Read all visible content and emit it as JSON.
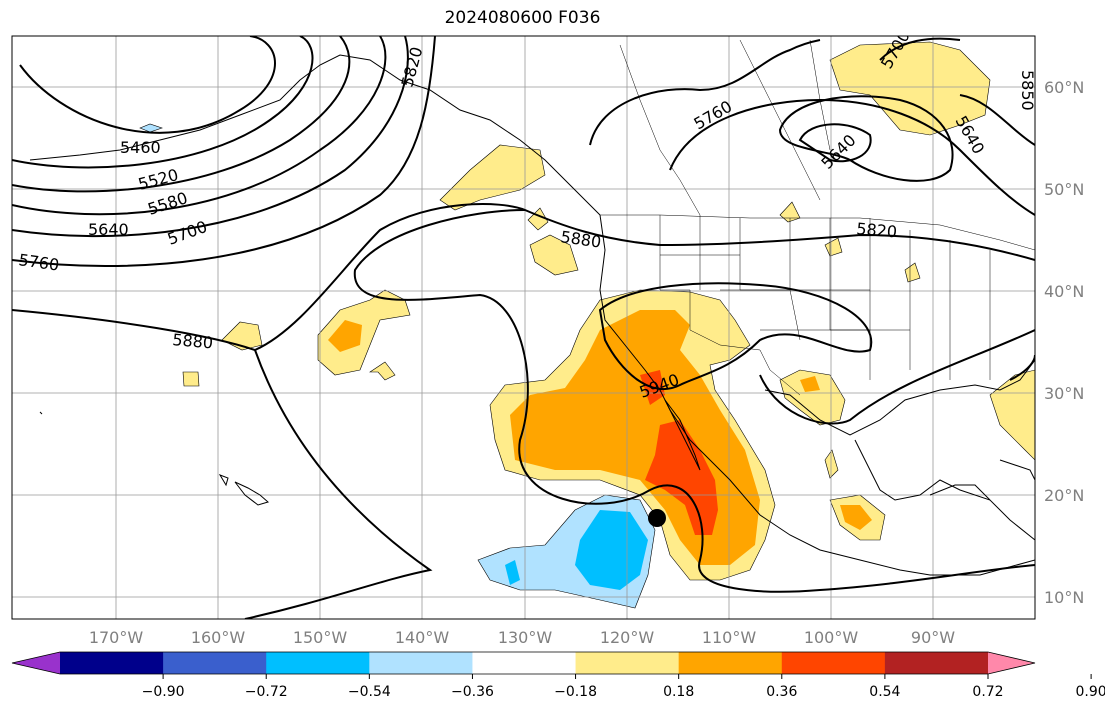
{
  "title": "2024080600 F036",
  "lat_labels": [
    "60°N",
    "50°N",
    "40°N",
    "30°N",
    "20°N",
    "10°N"
  ],
  "lon_labels": [
    "170°W",
    "160°W",
    "150°W",
    "140°W",
    "130°W",
    "120°W",
    "110°W",
    "100°W",
    "90°W"
  ],
  "contour_labels": [
    "5460",
    "5520",
    "5580",
    "5640",
    "5700",
    "5760",
    "5880",
    "5820",
    "5880",
    "5940",
    "5760",
    "5640",
    "5640",
    "5700",
    "5820",
    "5850"
  ],
  "colorbar": {
    "ticks": [
      "−0.90",
      "−0.72",
      "−0.54",
      "−0.36",
      "−0.18",
      "0.18",
      "0.36",
      "0.54",
      "0.72",
      "0.90"
    ],
    "colors": [
      "#9932cc",
      "#00008b",
      "#3a5fcd",
      "#00bfff",
      "#b0e2ff",
      "#ffffff",
      "#ffec8b",
      "#ffa500",
      "#ff4500",
      "#b22222",
      "#ff88aa"
    ]
  },
  "marker": {
    "name": "storm-center",
    "color": "#000000"
  }
}
